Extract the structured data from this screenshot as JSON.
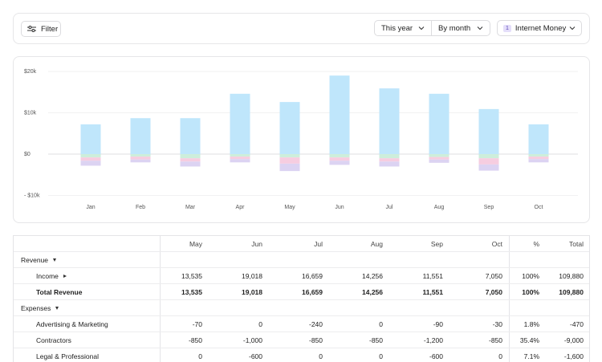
{
  "toolbar": {
    "filter": "Filter",
    "period": "This year",
    "grouping": "By month",
    "account_badge": "1",
    "account": "Internet Money"
  },
  "chart_data": {
    "type": "bar",
    "stacked": true,
    "categories": [
      "Jan",
      "Feb",
      "Mar",
      "Apr",
      "May",
      "Jun",
      "Jul",
      "Aug",
      "Sep",
      "Oct"
    ],
    "series": [
      {
        "color": "#bfe6fb",
        "values": [
          7200,
          8700,
          8700,
          14600,
          12600,
          19000,
          15900,
          14600,
          10900,
          7200
        ]
      },
      {
        "color": "#cdeedb",
        "values": [
          -800,
          -600,
          -1000,
          -600,
          -800,
          -800,
          -1000,
          -700,
          -1000,
          -600
        ]
      },
      {
        "color": "#f6cde0",
        "values": [
          -800,
          -700,
          -800,
          -600,
          -1500,
          -800,
          -800,
          -600,
          -1500,
          -600
        ]
      },
      {
        "color": "#dcd3f2",
        "values": [
          -1200,
          -700,
          -1200,
          -800,
          -1800,
          -1000,
          -1200,
          -800,
          -1500,
          -800
        ]
      }
    ],
    "ylim": [
      -10000,
      20000
    ],
    "yticks": [
      {
        "value": -10000,
        "label": "- $10k"
      },
      {
        "value": 0,
        "label": "$0"
      },
      {
        "value": 10000,
        "label": "$10k"
      },
      {
        "value": 20000,
        "label": "$20k"
      }
    ],
    "grid": true
  },
  "table": {
    "columns": [
      "May",
      "Jun",
      "Jul",
      "Aug",
      "Sep",
      "Oct",
      "%",
      "Total"
    ],
    "sections": [
      {
        "title": "Revenue",
        "rows": [
          {
            "label": "Income",
            "expandable": true,
            "values": [
              "13,535",
              "19,018",
              "16,659",
              "14,256",
              "11,551",
              "7,050",
              "100%",
              "109,880"
            ]
          }
        ],
        "total": {
          "label": "Total Revenue",
          "values": [
            "13,535",
            "19,018",
            "16,659",
            "14,256",
            "11,551",
            "7,050",
            "100%",
            "109,880"
          ]
        }
      },
      {
        "title": "Expenses",
        "rows": [
          {
            "label": "Advertising & Marketing",
            "values": [
              "-70",
              "0",
              "-240",
              "0",
              "-90",
              "-30",
              "1.8%",
              "-470"
            ]
          },
          {
            "label": "Contractors",
            "values": [
              "-850",
              "-1,000",
              "-850",
              "-850",
              "-1,200",
              "-850",
              "35.4%",
              "-9,000"
            ]
          },
          {
            "label": "Legal & Professional",
            "values": [
              "0",
              "-600",
              "0",
              "0",
              "-600",
              "0",
              "7.1%",
              "-1,600"
            ]
          }
        ]
      }
    ]
  }
}
